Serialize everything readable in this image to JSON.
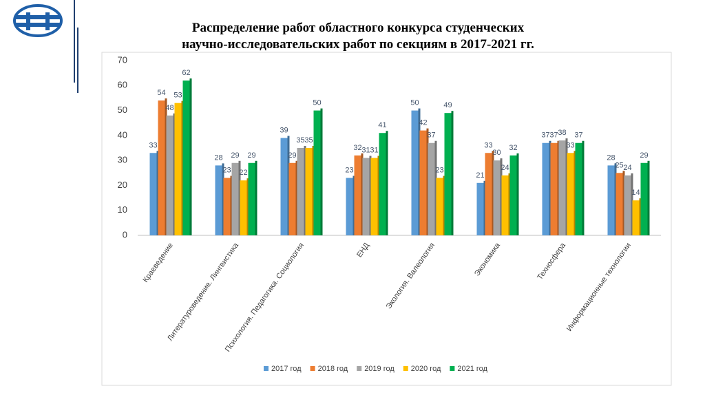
{
  "chart_data": {
    "type": "bar",
    "title": [
      "Распределение работ областного конкурса студенческих",
      "научно-исследовательских работ по секциям в 2017-2021 гг."
    ],
    "categories": [
      "Краеведение",
      "Литературоведение. Лингвистика",
      "Психология. Педагогика. Социология",
      "ЕНД",
      "Экология. Валеология",
      "Экономика",
      "Техносфера",
      "Информационные технологии"
    ],
    "series": [
      {
        "name": "2017 год",
        "color": "#5b9bd5",
        "values": [
          33,
          28,
          39,
          23,
          50,
          21,
          37,
          28
        ]
      },
      {
        "name": "2018 год",
        "color": "#ed7d31",
        "values": [
          54,
          23,
          29,
          32,
          42,
          33,
          37,
          25
        ]
      },
      {
        "name": "2019 год",
        "color": "#a5a5a5",
        "values": [
          48,
          29,
          35,
          31,
          37,
          30,
          38,
          24
        ]
      },
      {
        "name": "2020 год",
        "color": "#ffc000",
        "values": [
          53,
          22,
          35,
          31,
          23,
          24,
          33,
          14
        ]
      },
      {
        "name": "2021 год",
        "color": "#00b050",
        "values": [
          62,
          29,
          50,
          41,
          49,
          32,
          37,
          29
        ]
      }
    ],
    "ylim": [
      0,
      70
    ],
    "yticks": [
      0,
      10,
      20,
      30,
      40,
      50,
      60,
      70
    ],
    "grid": false,
    "legend": "bottom"
  }
}
